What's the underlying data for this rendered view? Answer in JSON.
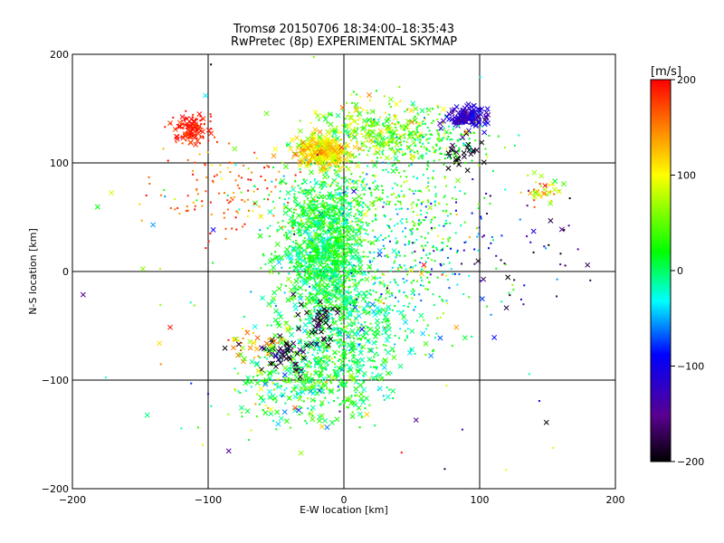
{
  "chart_data": {
    "type": "scatter",
    "title": "Tromsø 20150706 18:34:00–18:35:43",
    "subtitle": "RwPretec (8p) EXPERIMENTAL SKYMAP",
    "xlabel": "E-W location [km]",
    "ylabel": "N-S location [km]",
    "xlim": [
      -200,
      200
    ],
    "ylim": [
      -200,
      200
    ],
    "xticks": [
      -200,
      -100,
      0,
      100,
      200
    ],
    "yticks": [
      -200,
      -100,
      0,
      100,
      200
    ],
    "grid": true,
    "marker_symbols": [
      "small dot",
      "x"
    ],
    "colorbar": {
      "label": "[m/s]",
      "range": [
        -200,
        200
      ],
      "ticks": [
        -200,
        -100,
        0,
        100,
        200
      ],
      "stops": [
        "#000000",
        "#5a0090",
        "#0000ff",
        "#00ffff",
        "#00ff00",
        "#ffff00",
        "#ff0000"
      ]
    },
    "clusters": [
      {
        "x": -14,
        "y": 20,
        "sx": 16,
        "sy": 32,
        "v": 10,
        "sv": 25,
        "n": 1200,
        "mark": "mix"
      },
      {
        "x": -15,
        "y": 110,
        "sx": 10,
        "sy": 7,
        "v": 110,
        "sv": 25,
        "n": 260,
        "mark": "x"
      },
      {
        "x": 25,
        "y": 130,
        "sx": 25,
        "sy": 15,
        "v": 60,
        "sv": 40,
        "n": 300,
        "mark": "mix"
      },
      {
        "x": 60,
        "y": 120,
        "sx": 25,
        "sy": 12,
        "v": 20,
        "sv": 30,
        "n": 200,
        "mark": "dot"
      },
      {
        "x": 90,
        "y": 142,
        "sx": 8,
        "sy": 5,
        "v": -120,
        "sv": 20,
        "n": 120,
        "mark": "x"
      },
      {
        "x": 90,
        "y": 110,
        "sx": 7,
        "sy": 6,
        "v": -200,
        "sv": 15,
        "n": 25,
        "mark": "x"
      },
      {
        "x": -112,
        "y": 132,
        "sx": 7,
        "sy": 7,
        "v": 190,
        "sv": 15,
        "n": 120,
        "mark": "mix"
      },
      {
        "x": -85,
        "y": 75,
        "sx": 30,
        "sy": 20,
        "v": 160,
        "sv": 30,
        "n": 120,
        "mark": "dot"
      },
      {
        "x": 20,
        "y": 70,
        "sx": 40,
        "sy": 20,
        "v": 20,
        "sv": 40,
        "n": 300,
        "mark": "dot"
      },
      {
        "x": 50,
        "y": 20,
        "sx": 25,
        "sy": 30,
        "v": 0,
        "sv": 40,
        "n": 250,
        "mark": "dot"
      },
      {
        "x": -15,
        "y": -90,
        "sx": 25,
        "sy": 25,
        "v": 10,
        "sv": 30,
        "n": 450,
        "mark": "mix"
      },
      {
        "x": 10,
        "y": -45,
        "sx": 25,
        "sy": 30,
        "v": 0,
        "sv": 30,
        "n": 300,
        "mark": "mix"
      },
      {
        "x": -20,
        "y": -50,
        "sx": 8,
        "sy": 10,
        "v": -190,
        "sv": 20,
        "n": 35,
        "mark": "x"
      },
      {
        "x": -42,
        "y": -80,
        "sx": 8,
        "sy": 10,
        "v": -180,
        "sv": 20,
        "n": 45,
        "mark": "x"
      },
      {
        "x": -65,
        "y": -70,
        "sx": 10,
        "sy": 10,
        "v": 140,
        "sv": 30,
        "n": 35,
        "mark": "mix"
      },
      {
        "x": -55,
        "y": -110,
        "sx": 20,
        "sy": 20,
        "v": 30,
        "sv": 50,
        "n": 80,
        "mark": "mix"
      },
      {
        "x": 148,
        "y": 75,
        "sx": 8,
        "sy": 6,
        "v": 110,
        "sv": 40,
        "n": 40,
        "mark": "mix"
      },
      {
        "x": 140,
        "y": 20,
        "sx": 25,
        "sy": 25,
        "v": -170,
        "sv": 40,
        "n": 25,
        "mark": "mix"
      },
      {
        "x": 95,
        "y": 30,
        "sx": 25,
        "sy": 25,
        "v": -110,
        "sv": 40,
        "n": 40,
        "mark": "dot"
      },
      {
        "x": 0,
        "y": 0,
        "sx": 110,
        "sy": 110,
        "v": 0,
        "sv": 110,
        "n": 150,
        "mark": "mix"
      }
    ]
  }
}
